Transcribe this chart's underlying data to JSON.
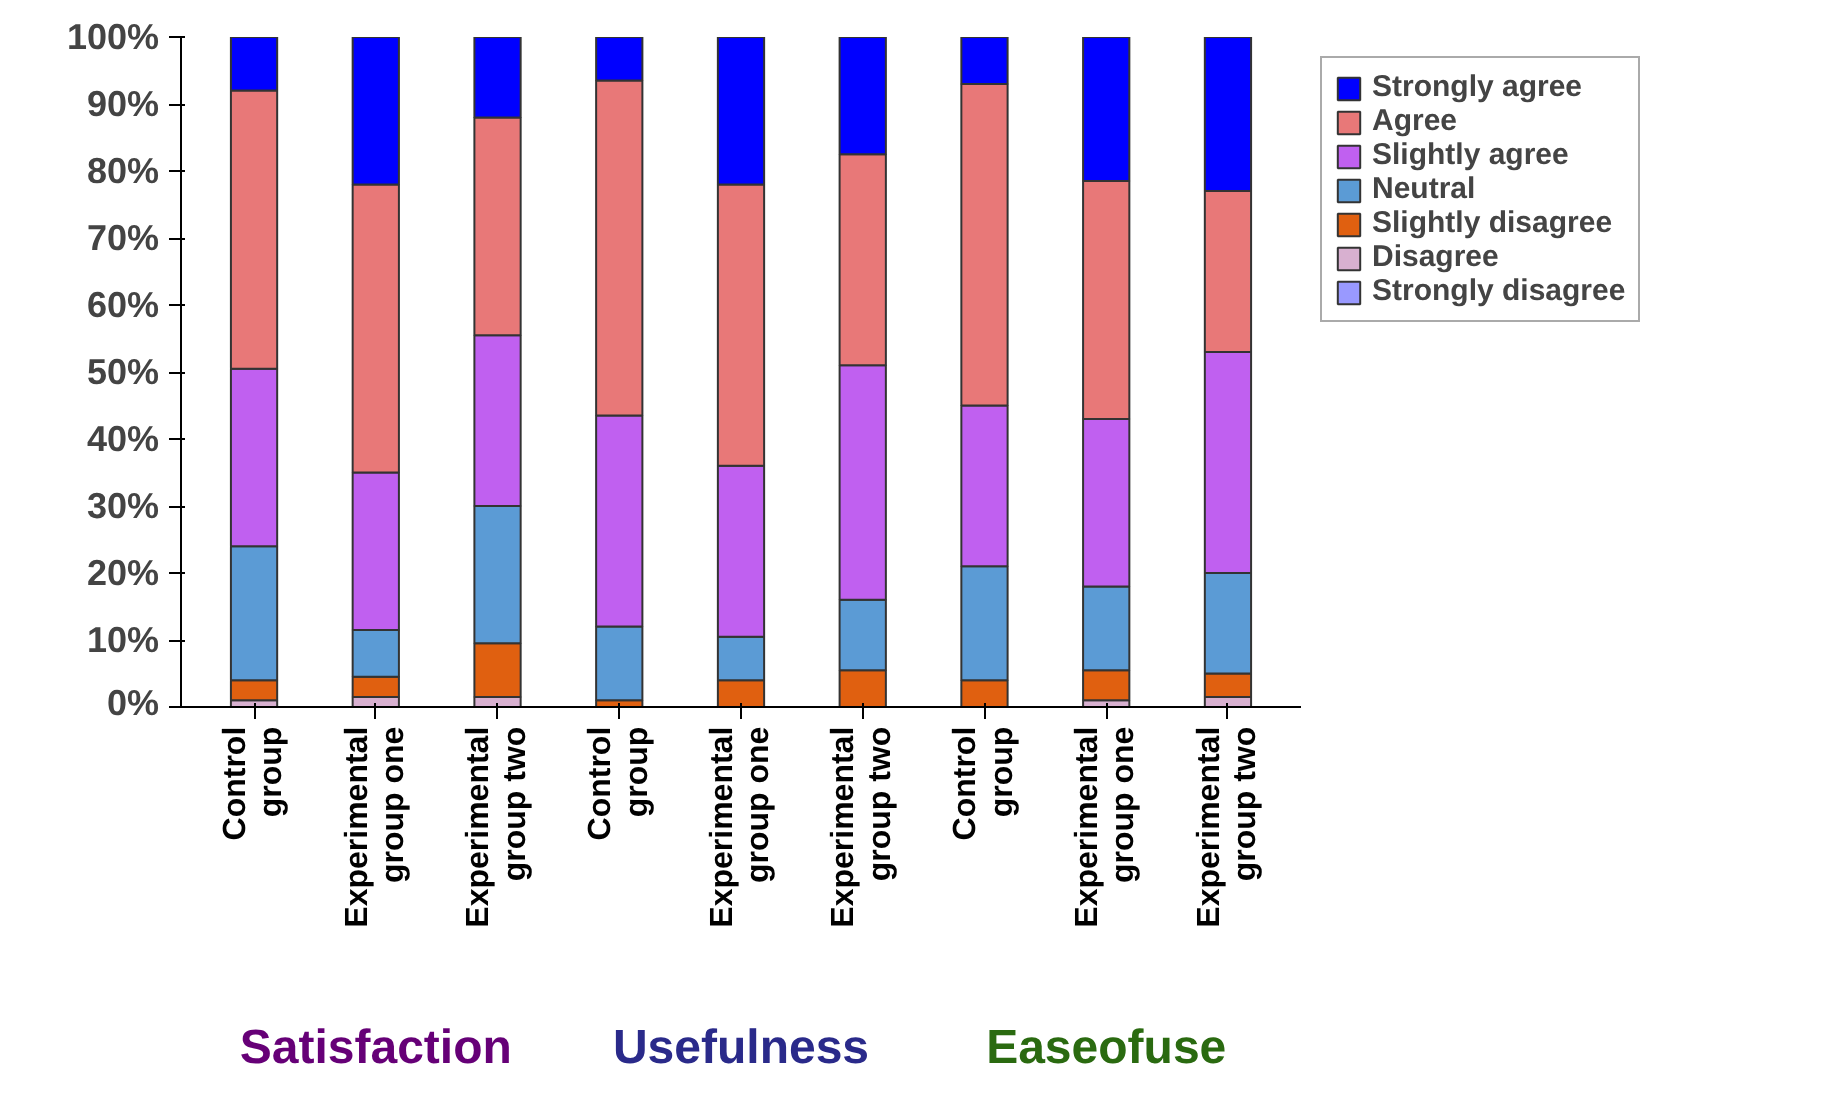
{
  "chart_data": {
    "type": "bar",
    "stacked": true,
    "categories": [
      "Control group",
      "Experimental group one",
      "Experimental group two",
      "Control group",
      "Experimental group one",
      "Experimental group two",
      "Control group",
      "Experimental group one",
      "Experimental group two"
    ],
    "series": [
      {
        "name": "Strongly disagree",
        "color": "#9999ff",
        "values": [
          0,
          0,
          0,
          0,
          0,
          0,
          0,
          0,
          0
        ]
      },
      {
        "name": "Disagree",
        "color": "#d8b0d0",
        "values": [
          1,
          1.5,
          1.5,
          0,
          0,
          0,
          0,
          1,
          1.5
        ]
      },
      {
        "name": "Slightly disagree",
        "color": "#e06010",
        "values": [
          3,
          3,
          8,
          1,
          4,
          5.5,
          4,
          4.5,
          3.5
        ]
      },
      {
        "name": "Neutral",
        "color": "#5b9bd5",
        "values": [
          20,
          7,
          20.5,
          11,
          6.5,
          10.5,
          17,
          12.5,
          15
        ]
      },
      {
        "name": "Slightly agree",
        "color": "#c060f0",
        "values": [
          26.5,
          23.5,
          25.5,
          31.5,
          25.5,
          35,
          24,
          25,
          33
        ]
      },
      {
        "name": "Agree",
        "color": "#e87878",
        "values": [
          41.5,
          43,
          32.5,
          50,
          42,
          31.5,
          48,
          35.5,
          24
        ]
      },
      {
        "name": "Strongly agree",
        "color": "#0000ff",
        "values": [
          8,
          22,
          12,
          6.5,
          22,
          17.5,
          7,
          21.5,
          23
        ]
      }
    ],
    "ylim": [
      0,
      100
    ],
    "yticks": [
      {
        "value": 0,
        "label": "0%"
      },
      {
        "value": 10,
        "label": "10%"
      },
      {
        "value": 20,
        "label": "20%"
      },
      {
        "value": 30,
        "label": "30%"
      },
      {
        "value": 40,
        "label": "40%"
      },
      {
        "value": 50,
        "label": "50%"
      },
      {
        "value": 60,
        "label": "60%"
      },
      {
        "value": 70,
        "label": "70%"
      },
      {
        "value": 80,
        "label": "80%"
      },
      {
        "value": 90,
        "label": "90%"
      },
      {
        "value": 100,
        "label": "100%"
      }
    ],
    "annotations": [
      "Satisfaction",
      "Usefulness",
      "Easeofuse"
    ],
    "grid": false,
    "legend": "right"
  }
}
